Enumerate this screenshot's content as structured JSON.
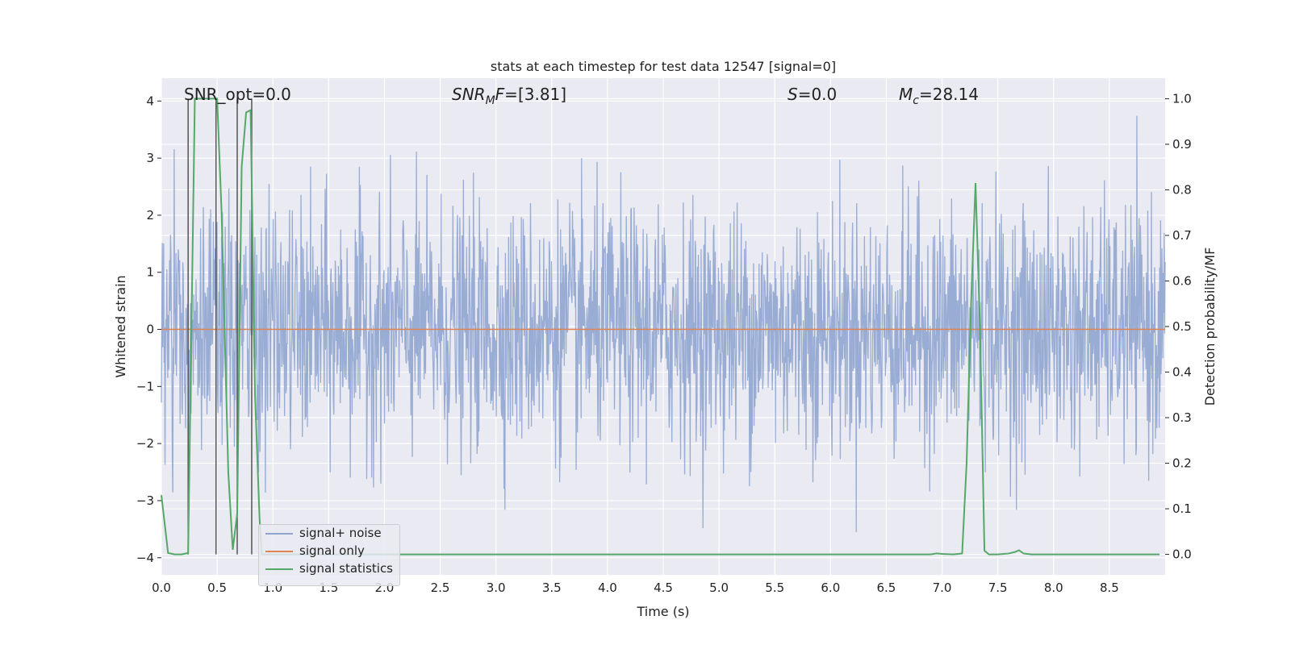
{
  "chart_data": {
    "type": "line",
    "title": "stats at each timestep for test data 12547 [signal=0]",
    "xlabel": "Time (s)",
    "ylabel_left": "Whitened strain",
    "ylabel_right": "Detection probability/MF",
    "xlim": [
      0.0,
      9.0
    ],
    "ylim_left": [
      -4.3,
      4.4
    ],
    "ylim_right": [
      -0.045,
      1.045
    ],
    "xticks": [
      "0.0",
      "0.5",
      "1.0",
      "1.5",
      "2.0",
      "2.5",
      "3.0",
      "3.5",
      "4.0",
      "4.5",
      "5.0",
      "5.5",
      "6.0",
      "6.5",
      "7.0",
      "7.5",
      "8.0",
      "8.5"
    ],
    "yticks_left": [
      "−4",
      "−3",
      "−2",
      "−1",
      "0",
      "1",
      "2",
      "3",
      "4"
    ],
    "yticks_right": [
      "0.0",
      "0.1",
      "0.2",
      "0.3",
      "0.4",
      "0.5",
      "0.6",
      "0.7",
      "0.8",
      "0.9",
      "1.0"
    ],
    "grid": true,
    "legend_position": "lower-left",
    "annotations": {
      "snr_opt": "SNR_opt=0.0",
      "snr_mf": "[3.81]",
      "s_label": "=0.0",
      "mc_label": "=28.14"
    },
    "series": [
      {
        "name": "signal+ noise",
        "color": "#8fa5d0",
        "note_values": "dense white-noise strain fluctuating mostly within ±1.6 with spikes to about ±4"
      },
      {
        "name": "signal only",
        "color": "#dd8452",
        "values_y": 0.0
      },
      {
        "name": "signal statistics",
        "color": "#55a868",
        "axis": "right",
        "x": [
          0.0,
          0.06,
          0.12,
          0.18,
          0.24,
          0.3,
          0.36,
          0.42,
          0.48,
          0.5,
          0.54,
          0.6,
          0.64,
          0.68,
          0.72,
          0.76,
          0.8,
          0.84,
          0.88,
          0.9,
          0.95,
          1.0,
          2.0,
          3.0,
          4.0,
          5.0,
          6.0,
          6.9,
          6.95,
          7.0,
          7.1,
          7.18,
          7.22,
          7.26,
          7.3,
          7.34,
          7.38,
          7.42,
          7.5,
          7.6,
          7.65,
          7.69,
          7.73,
          7.8,
          8.0,
          8.5,
          8.95
        ],
        "y": [
          0.13,
          0.003,
          0.0,
          0.0,
          0.003,
          1.0,
          1.0,
          1.0,
          1.0,
          1.0,
          0.75,
          0.18,
          0.01,
          0.09,
          0.85,
          0.97,
          0.975,
          0.35,
          0.08,
          0.0,
          0.0,
          0.0,
          0.0,
          0.0,
          0.0,
          0.0,
          0.0,
          0.0,
          0.002,
          0.001,
          0.0,
          0.002,
          0.2,
          0.55,
          0.815,
          0.5,
          0.008,
          0.0,
          0.0,
          0.002,
          0.005,
          0.009,
          0.002,
          0.0,
          0.0,
          0.0,
          0.0
        ]
      }
    ],
    "vertical_lines_x": [
      0.24,
      0.49,
      0.68,
      0.81
    ],
    "vertical_lines_color": "#555555"
  }
}
